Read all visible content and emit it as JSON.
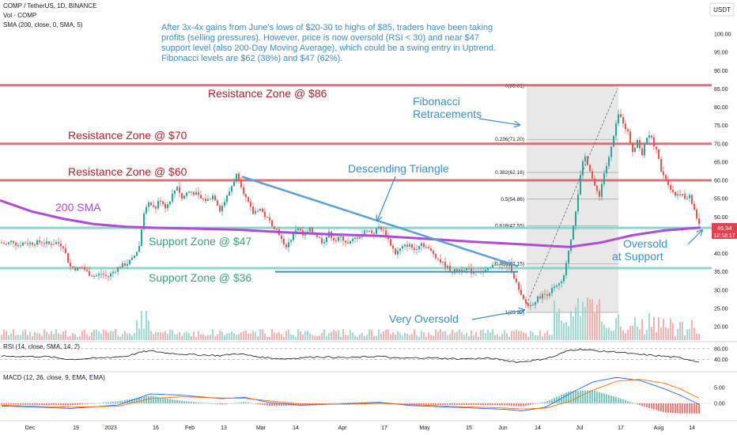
{
  "header": {
    "symbol_line": "COMP / TetherUS, 1D, BINANCE",
    "vol_line": "Vol · COMP",
    "sma_line": "SMA (200, close, 0, SMA, 5)",
    "currency": "USDT"
  },
  "annotations": {
    "note_lines": [
      "After 3x-4x gains from June's lows of $20-30 to highs of $85, traders have been taking",
      "profits (selling pressures). However, price is now oversold (RSI < 30) and near $47",
      "support level (also 200-Day Moving Average), which could be a swing entry in Uptrend.",
      "Fibonacci levels are $62 (38%) and $47 (62%)."
    ],
    "resistance_86": "Resistance Zone @ $86",
    "resistance_70": "Resistance Zone @ $70",
    "resistance_60": "Resistance Zone @ $60",
    "support_47": "Support Zone @ $47",
    "support_36": "Support Zone @ $36",
    "sma_label": "200 SMA",
    "fib_label_1": "Fibonacci",
    "fib_label_2": "Retracements",
    "triangle_label": "Descending Triangle",
    "very_oversold": "Very Oversold",
    "oversold_1": "Oversold",
    "oversold_2": "at Support"
  },
  "price_badge": {
    "value": "46.34",
    "timer": "12:18:17"
  },
  "chart_data": {
    "type": "candlestick",
    "title": "COMP / TetherUS, 1D, BINANCE",
    "ylim": [
      15,
      105
    ],
    "y_ticks": [
      "100.00",
      "95.00",
      "90.00",
      "85.00",
      "80.00",
      "75.00",
      "70.00",
      "65.00",
      "60.00",
      "55.00",
      "50.00",
      "45.00",
      "40.00",
      "35.00",
      "30.00",
      "25.00",
      "20.00"
    ],
    "x_ticks": [
      "Dec",
      "19",
      "2023",
      "16",
      "Feb",
      "13",
      "Mar",
      "14",
      "Apr",
      "17",
      "May",
      "15",
      "Jun",
      "14",
      "Jul",
      "17",
      "Aug",
      "14"
    ],
    "last_price": 46.34,
    "horizontal_levels": [
      {
        "label": "Resistance Zone @ $86",
        "value": 86
      },
      {
        "label": "Resistance Zone @ $70",
        "value": 70
      },
      {
        "label": "Resistance Zone @ $60",
        "value": 60
      },
      {
        "label": "Support Zone @ $47",
        "value": 47
      },
      {
        "label": "Support Zone @ $36",
        "value": 36
      }
    ],
    "fibonacci": [
      {
        "label": "0(85.81)",
        "value": 85.81
      },
      {
        "label": "0.236(71.20)",
        "value": 71.2
      },
      {
        "label": "0.382(62.16)",
        "value": 62.16
      },
      {
        "label": "0.5(54.86)",
        "value": 54.86
      },
      {
        "label": "0.618(47.55)",
        "value": 47.55
      },
      {
        "label": "0.786(37.15)",
        "value": 37.15
      },
      {
        "label": "1(23.90)",
        "value": 23.9
      }
    ],
    "close_path": [
      [
        0,
        43.0
      ],
      [
        8,
        42.5
      ],
      [
        16,
        43.5
      ],
      [
        22,
        42.2
      ],
      [
        30,
        43.0
      ],
      [
        40,
        42.8
      ],
      [
        52,
        43.2
      ],
      [
        62,
        42.6
      ],
      [
        72,
        43.0
      ],
      [
        80,
        42.0
      ],
      [
        88,
        36.5
      ],
      [
        96,
        35.8
      ],
      [
        104,
        36.2
      ],
      [
        112,
        34.5
      ],
      [
        120,
        33.8
      ],
      [
        128,
        34.5
      ],
      [
        136,
        33.6
      ],
      [
        144,
        35.2
      ],
      [
        152,
        36.5
      ],
      [
        160,
        37.2
      ],
      [
        168,
        38.5
      ],
      [
        176,
        42.0
      ],
      [
        182,
        51.5
      ],
      [
        190,
        54.0
      ],
      [
        196,
        52.0
      ],
      [
        202,
        55.0
      ],
      [
        210,
        52.5
      ],
      [
        218,
        56.0
      ],
      [
        224,
        58.5
      ],
      [
        230,
        55.0
      ],
      [
        238,
        57.0
      ],
      [
        246,
        56.5
      ],
      [
        254,
        55.0
      ],
      [
        262,
        54.5
      ],
      [
        270,
        56.0
      ],
      [
        278,
        52.0
      ],
      [
        286,
        55.0
      ],
      [
        294,
        59.0
      ],
      [
        300,
        62.0
      ],
      [
        306,
        58.0
      ],
      [
        312,
        54.5
      ],
      [
        320,
        51.0
      ],
      [
        328,
        52.5
      ],
      [
        336,
        50.0
      ],
      [
        344,
        48.0
      ],
      [
        352,
        46.0
      ],
      [
        360,
        41.5
      ],
      [
        368,
        44.0
      ],
      [
        376,
        47.5
      ],
      [
        384,
        44.5
      ],
      [
        392,
        46.5
      ],
      [
        400,
        45.0
      ],
      [
        408,
        43.0
      ],
      [
        416,
        45.5
      ],
      [
        424,
        43.5
      ],
      [
        432,
        44.5
      ],
      [
        440,
        42.5
      ],
      [
        448,
        44.0
      ],
      [
        456,
        45.0
      ],
      [
        464,
        46.5
      ],
      [
        472,
        45.5
      ],
      [
        480,
        47.5
      ],
      [
        488,
        45.0
      ],
      [
        494,
        42.5
      ],
      [
        500,
        40.0
      ],
      [
        508,
        41.5
      ],
      [
        516,
        42.5
      ],
      [
        524,
        41.0
      ],
      [
        532,
        43.0
      ],
      [
        540,
        41.5
      ],
      [
        548,
        40.0
      ],
      [
        556,
        38.0
      ],
      [
        564,
        36.5
      ],
      [
        572,
        35.0
      ],
      [
        580,
        35.5
      ],
      [
        588,
        36.0
      ],
      [
        596,
        35.0
      ],
      [
        604,
        35.5
      ],
      [
        612,
        34.8
      ],
      [
        620,
        36.0
      ],
      [
        628,
        37.5
      ],
      [
        636,
        36.5
      ],
      [
        644,
        37.0
      ],
      [
        652,
        32.5
      ],
      [
        658,
        28.5
      ],
      [
        664,
        26.5
      ],
      [
        670,
        25.5
      ],
      [
        676,
        27.0
      ],
      [
        684,
        28.5
      ],
      [
        692,
        29.0
      ],
      [
        700,
        30.5
      ],
      [
        708,
        31.5
      ],
      [
        714,
        34.0
      ],
      [
        718,
        40.0
      ],
      [
        722,
        44.0
      ],
      [
        728,
        52.0
      ],
      [
        732,
        58.0
      ],
      [
        736,
        64.0
      ],
      [
        740,
        66.5
      ],
      [
        746,
        63.0
      ],
      [
        752,
        58.0
      ],
      [
        758,
        56.0
      ],
      [
        764,
        62.0
      ],
      [
        770,
        66.0
      ],
      [
        776,
        72.0
      ],
      [
        782,
        78.0
      ],
      [
        788,
        76.0
      ],
      [
        794,
        73.0
      ],
      [
        800,
        68.0
      ],
      [
        806,
        71.0
      ],
      [
        812,
        67.0
      ],
      [
        818,
        72.0
      ],
      [
        824,
        71.5
      ],
      [
        830,
        68.0
      ],
      [
        836,
        63.0
      ],
      [
        842,
        60.5
      ],
      [
        848,
        58.0
      ],
      [
        854,
        56.0
      ],
      [
        860,
        56.5
      ],
      [
        866,
        55.0
      ],
      [
        872,
        55.5
      ],
      [
        878,
        52.0
      ],
      [
        882,
        49.0
      ],
      [
        886,
        46.34
      ]
    ],
    "sma_200_path": [
      [
        0,
        54.5
      ],
      [
        40,
        51.5
      ],
      [
        80,
        49.5
      ],
      [
        120,
        48.0
      ],
      [
        160,
        47.3
      ],
      [
        200,
        47.0
      ],
      [
        250,
        46.8
      ],
      [
        300,
        46.5
      ],
      [
        360,
        45.8
      ],
      [
        420,
        45.2
      ],
      [
        480,
        44.8
      ],
      [
        540,
        44.0
      ],
      [
        600,
        43.2
      ],
      [
        660,
        42.5
      ],
      [
        700,
        42.0
      ],
      [
        720,
        41.8
      ],
      [
        760,
        43.0
      ],
      [
        800,
        45.0
      ],
      [
        840,
        46.3
      ],
      [
        886,
        47.1
      ]
    ],
    "descending_triangle": {
      "upper": [
        [
          306,
          61.0
        ],
        [
          655,
          36.5
        ]
      ],
      "lower": [
        [
          348,
          35.0
        ],
        [
          655,
          35.0
        ]
      ]
    },
    "rsi": {
      "label": "RSI (14, close, SMA, 14, 2)",
      "axis_ticks": [
        "80.00",
        "40.00"
      ],
      "bands": [
        80,
        40
      ],
      "path": [
        [
          0,
          52
        ],
        [
          60,
          50
        ],
        [
          88,
          40
        ],
        [
          120,
          44
        ],
        [
          160,
          52
        ],
        [
          180,
          68
        ],
        [
          190,
          72
        ],
        [
          210,
          64
        ],
        [
          240,
          58
        ],
        [
          280,
          54
        ],
        [
          300,
          62
        ],
        [
          330,
          48
        ],
        [
          360,
          42
        ],
        [
          400,
          50
        ],
        [
          440,
          46
        ],
        [
          480,
          52
        ],
        [
          500,
          44
        ],
        [
          540,
          46
        ],
        [
          580,
          42
        ],
        [
          620,
          44
        ],
        [
          655,
          30
        ],
        [
          680,
          38
        ],
        [
          700,
          50
        ],
        [
          720,
          74
        ],
        [
          735,
          78
        ],
        [
          760,
          70
        ],
        [
          780,
          68
        ],
        [
          800,
          60
        ],
        [
          830,
          54
        ],
        [
          860,
          46
        ],
        [
          886,
          30
        ]
      ]
    },
    "macd": {
      "label": "MACD (12, 26, close, 9, EMA, EMA)",
      "axis_ticks": [
        "5.00",
        "0.00"
      ],
      "macd_path": [
        [
          0,
          -0.8
        ],
        [
          90,
          -1.6
        ],
        [
          150,
          -0.5
        ],
        [
          190,
          3.0
        ],
        [
          230,
          2.6
        ],
        [
          280,
          1.5
        ],
        [
          310,
          1.9
        ],
        [
          340,
          0.3
        ],
        [
          380,
          -0.6
        ],
        [
          430,
          -0.2
        ],
        [
          480,
          0.3
        ],
        [
          520,
          -0.7
        ],
        [
          580,
          -1.3
        ],
        [
          640,
          -1.9
        ],
        [
          660,
          -2.4
        ],
        [
          690,
          -1.2
        ],
        [
          720,
          3.0
        ],
        [
          750,
          6.8
        ],
        [
          780,
          8.2
        ],
        [
          810,
          7.2
        ],
        [
          840,
          4.6
        ],
        [
          860,
          2.6
        ],
        [
          886,
          -0.6
        ]
      ],
      "signal_path": [
        [
          0,
          -0.6
        ],
        [
          90,
          -1.2
        ],
        [
          150,
          -0.9
        ],
        [
          190,
          1.5
        ],
        [
          230,
          2.1
        ],
        [
          280,
          1.7
        ],
        [
          310,
          1.6
        ],
        [
          340,
          0.8
        ],
        [
          380,
          -0.2
        ],
        [
          430,
          -0.3
        ],
        [
          480,
          0.0
        ],
        [
          520,
          -0.4
        ],
        [
          580,
          -1.0
        ],
        [
          640,
          -1.5
        ],
        [
          660,
          -1.8
        ],
        [
          690,
          -1.5
        ],
        [
          720,
          0.6
        ],
        [
          750,
          4.2
        ],
        [
          780,
          7.0
        ],
        [
          810,
          7.6
        ],
        [
          840,
          6.4
        ],
        [
          860,
          4.6
        ],
        [
          886,
          1.4
        ]
      ]
    }
  },
  "colors": {
    "up": "#26a69a",
    "down": "#ef5350",
    "sma": "#b14ad6",
    "resistance": "#d35a66",
    "support": "#7fd3c3",
    "annotation": "#3b8fc9",
    "price_badge": "#e0434f"
  }
}
